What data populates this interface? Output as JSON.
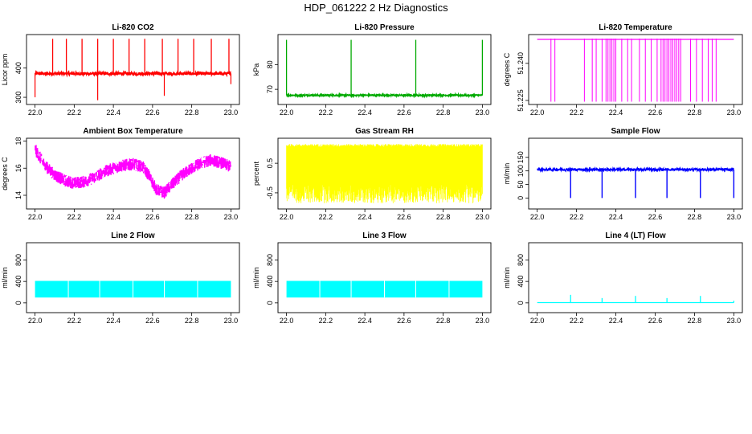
{
  "title": "HDP_061222  2 Hz Diagnostics",
  "chart_data": [
    {
      "id": "co2",
      "type": "line",
      "title": "Li-820 CO2",
      "ylabel": "Licor ppm",
      "color": "#ff0000",
      "x": {
        "range": [
          22.0,
          23.0
        ],
        "ticks": [
          22.0,
          22.2,
          22.4,
          22.6,
          22.8,
          23.0
        ],
        "tick_labels": [
          "22.0",
          "22.2",
          "22.4",
          "22.6",
          "22.8",
          "23.0"
        ]
      },
      "ylim": [
        285,
        505
      ],
      "yticks": [
        300,
        400
      ],
      "ytick_labels": [
        "300",
        "400"
      ],
      "series": [
        {
          "name": "CO2",
          "baseline": 381,
          "noise": 5,
          "spikes": [
            22.09,
            22.16,
            22.24,
            22.32,
            22.4,
            22.48,
            22.56,
            22.65,
            22.73,
            22.81,
            22.9,
            22.99
          ],
          "spike_value": 500,
          "dips": [
            {
              "x": 22.0,
              "y": 300
            },
            {
              "x": 22.32,
              "y": 290
            },
            {
              "x": 22.66,
              "y": 305
            },
            {
              "x": 23.0,
              "y": 345
            }
          ]
        }
      ]
    },
    {
      "id": "pressure",
      "type": "line",
      "title": "Li-820 Pressure",
      "ylabel": "kPa",
      "color": "#00aa00",
      "x": {
        "range": [
          22.0,
          23.0
        ],
        "ticks": [
          22.0,
          22.2,
          22.4,
          22.6,
          22.8,
          23.0
        ],
        "tick_labels": [
          "22.0",
          "22.2",
          "22.4",
          "22.6",
          "22.8",
          "23.0"
        ]
      },
      "ylim": [
        65,
        91
      ],
      "yticks": [
        70,
        80
      ],
      "ytick_labels": [
        "70",
        "80"
      ],
      "series": [
        {
          "name": "Pressure",
          "baseline": 67.6,
          "noise": 0.3,
          "spikes": [
            22.0,
            22.33,
            22.66,
            23.0
          ],
          "spike_value": 90
        }
      ]
    },
    {
      "id": "temperature",
      "type": "line",
      "title": "Li-820 Temperature",
      "ylabel": "degrees C",
      "color": "#ff00ff",
      "x": {
        "range": [
          22.0,
          23.0
        ],
        "ticks": [
          22.0,
          22.2,
          22.4,
          22.6,
          22.8,
          23.0
        ],
        "tick_labels": [
          "22.0",
          "22.2",
          "22.4",
          "22.6",
          "22.8",
          "23.0"
        ]
      },
      "ylim": [
        51.2245,
        51.2505
      ],
      "yticks": [
        51.225,
        51.24
      ],
      "ytick_labels": [
        "51.225",
        "51.240"
      ],
      "series": [
        {
          "name": "Temperature",
          "baseline": 51.25,
          "low_value": 51.2245,
          "dropouts": [
            22.07,
            22.09,
            22.24,
            22.28,
            22.3,
            22.33,
            22.35,
            22.36,
            22.37,
            22.38,
            22.39,
            22.4,
            22.43,
            22.46,
            22.48,
            22.52,
            22.55,
            22.58,
            22.61,
            22.63,
            22.64,
            22.65,
            22.66,
            22.67,
            22.68,
            22.69,
            22.7,
            22.71,
            22.72,
            22.73,
            22.78,
            22.81,
            22.84,
            22.87,
            22.89,
            22.91
          ]
        }
      ]
    },
    {
      "id": "ambient",
      "type": "line",
      "title": "Ambient Box Temperature",
      "ylabel": "degrees C",
      "color": "#ff00ff",
      "x": {
        "range": [
          22.0,
          23.0
        ],
        "ticks": [
          22.0,
          22.2,
          22.4,
          22.6,
          22.8,
          23.0
        ],
        "tick_labels": [
          "22.0",
          "22.2",
          "22.4",
          "22.6",
          "22.8",
          "23.0"
        ]
      },
      "ylim": [
        13.2,
        18.0
      ],
      "yticks": [
        14,
        16,
        18
      ],
      "ytick_labels": [
        "14",
        "16",
        "18"
      ],
      "series": [
        {
          "name": "Ambient",
          "band": 0.9,
          "points": [
            [
              22.0,
              17.4
            ],
            [
              22.05,
              16.2
            ],
            [
              22.1,
              15.5
            ],
            [
              22.15,
              15.1
            ],
            [
              22.2,
              14.9
            ],
            [
              22.25,
              15.0
            ],
            [
              22.3,
              15.3
            ],
            [
              22.35,
              15.7
            ],
            [
              22.4,
              16.0
            ],
            [
              22.45,
              16.2
            ],
            [
              22.5,
              16.3
            ],
            [
              22.55,
              16.1
            ],
            [
              22.58,
              15.5
            ],
            [
              22.62,
              14.4
            ],
            [
              22.66,
              14.2
            ],
            [
              22.7,
              14.8
            ],
            [
              22.75,
              15.5
            ],
            [
              22.8,
              16.0
            ],
            [
              22.85,
              16.4
            ],
            [
              22.9,
              16.6
            ],
            [
              22.95,
              16.4
            ],
            [
              23.0,
              16.1
            ]
          ]
        }
      ]
    },
    {
      "id": "rh",
      "type": "line",
      "title": "Gas Stream RH",
      "ylabel": "percent",
      "color": "#ffff00",
      "x": {
        "range": [
          22.0,
          23.0
        ],
        "ticks": [
          22.0,
          22.2,
          22.4,
          22.6,
          22.8,
          23.0
        ],
        "tick_labels": [
          "22.0",
          "22.2",
          "22.4",
          "22.6",
          "22.8",
          "23.0"
        ]
      },
      "ylim": [
        -0.95,
        1.25
      ],
      "yticks": [
        -0.5,
        0.5
      ],
      "ytick_labels": [
        "-0.5",
        "0.5"
      ],
      "series": [
        {
          "name": "RH",
          "band_low": -0.2,
          "band_high": 1.05,
          "min": -0.85,
          "max": 1.15
        }
      ]
    },
    {
      "id": "sample",
      "type": "line",
      "title": "Sample Flow",
      "ylabel": "ml/min",
      "color": "#0000ff",
      "x": {
        "range": [
          22.0,
          23.0
        ],
        "ticks": [
          22.0,
          22.2,
          22.4,
          22.6,
          22.8,
          23.0
        ],
        "tick_labels": [
          "22.0",
          "22.2",
          "22.4",
          "22.6",
          "22.8",
          "23.0"
        ]
      },
      "ylim": [
        -30,
        210
      ],
      "yticks": [
        0,
        50,
        100,
        150
      ],
      "ytick_labels": [
        "0",
        "50",
        "100",
        "150"
      ],
      "series": [
        {
          "name": "Sample",
          "baseline": 105,
          "noise": 4,
          "spike_value": 112,
          "dips": [
            22.17,
            22.33,
            22.5,
            22.66,
            22.83,
            23.0
          ],
          "dip_value": 0
        }
      ]
    },
    {
      "id": "line2",
      "type": "area",
      "title": "Line 2 Flow",
      "ylabel": "ml/min",
      "color": "#00ffff",
      "x": {
        "range": [
          22.0,
          23.0
        ],
        "ticks": [
          22.0,
          22.2,
          22.4,
          22.6,
          22.8,
          23.0
        ],
        "tick_labels": [
          "22.0",
          "22.2",
          "22.4",
          "22.6",
          "22.8",
          "23.0"
        ]
      },
      "ylim": [
        -130,
        1070
      ],
      "yticks": [
        0,
        400,
        800
      ],
      "ytick_labels": [
        "0",
        "400",
        "800"
      ],
      "series": [
        {
          "name": "Line 2",
          "band_low": 100,
          "band_high": 410,
          "gaps": [
            22.17,
            22.33,
            22.5,
            22.66,
            22.83
          ]
        }
      ]
    },
    {
      "id": "line3",
      "type": "area",
      "title": "Line 3 Flow",
      "ylabel": "ml/min",
      "color": "#00ffff",
      "x": {
        "range": [
          22.0,
          23.0
        ],
        "ticks": [
          22.0,
          22.2,
          22.4,
          22.6,
          22.8,
          23.0
        ],
        "tick_labels": [
          "22.0",
          "22.2",
          "22.4",
          "22.6",
          "22.8",
          "23.0"
        ]
      },
      "ylim": [
        -130,
        1070
      ],
      "yticks": [
        0,
        400,
        800
      ],
      "ytick_labels": [
        "0",
        "400",
        "800"
      ],
      "series": [
        {
          "name": "Line 3",
          "band_low": 100,
          "band_high": 410,
          "gaps": [
            22.17,
            22.33,
            22.5,
            22.66,
            22.83
          ]
        }
      ]
    },
    {
      "id": "line4",
      "type": "line",
      "title": "Line 4 (LT) Flow",
      "ylabel": "ml/min",
      "color": "#00ffff",
      "x": {
        "range": [
          22.0,
          23.0
        ],
        "ticks": [
          22.0,
          22.2,
          22.4,
          22.6,
          22.8,
          23.0
        ],
        "tick_labels": [
          "22.0",
          "22.2",
          "22.4",
          "22.6",
          "22.8",
          "23.0"
        ]
      },
      "ylim": [
        -130,
        1070
      ],
      "yticks": [
        0,
        400,
        800
      ],
      "ytick_labels": [
        "0",
        "400",
        "800"
      ],
      "series": [
        {
          "name": "Line 4",
          "baseline": 5,
          "spikes": [
            {
              "x": 22.17,
              "y": 150
            },
            {
              "x": 22.33,
              "y": 90
            },
            {
              "x": 22.5,
              "y": 130
            },
            {
              "x": 22.66,
              "y": 90
            },
            {
              "x": 22.83,
              "y": 130
            },
            {
              "x": 23.0,
              "y": 40
            }
          ]
        }
      ]
    }
  ]
}
